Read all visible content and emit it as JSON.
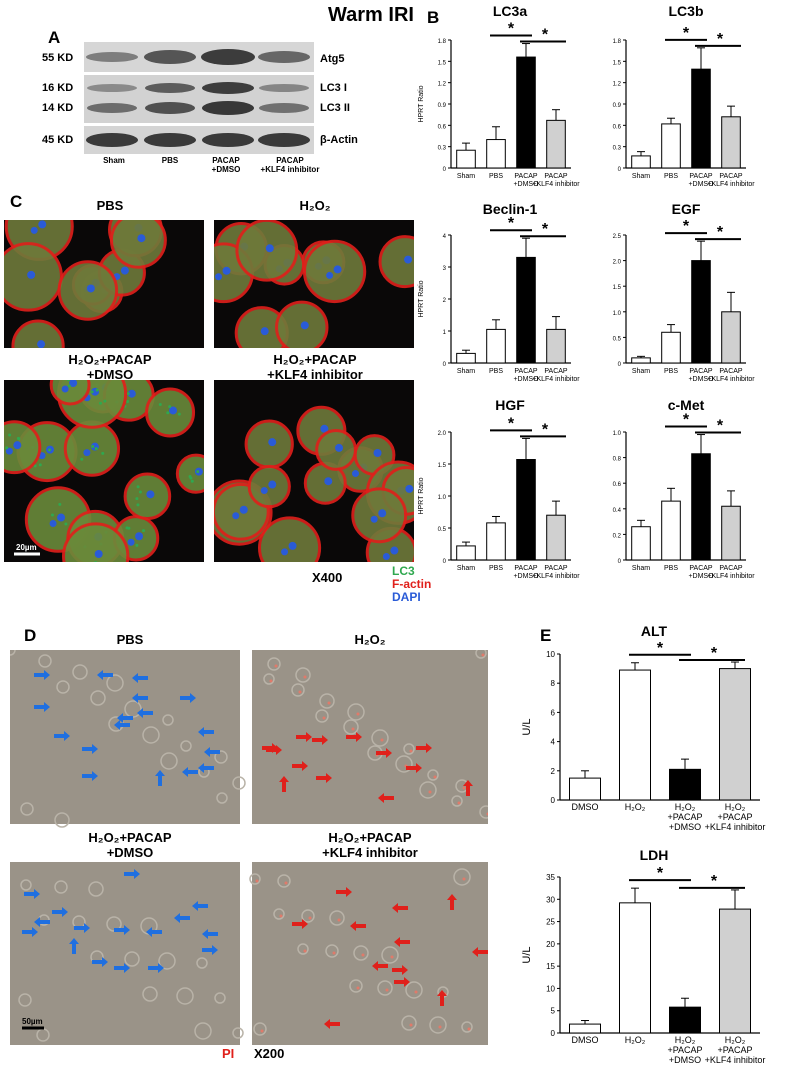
{
  "header": {
    "title": "Warm IRI"
  },
  "panel_labels": {
    "a": "A",
    "b": "B",
    "c": "C",
    "d": "D",
    "e": "E"
  },
  "blot": {
    "kd_labels": [
      "55 KD",
      "16 KD",
      "14 KD",
      "45 KD"
    ],
    "band_labels": [
      "Atg5",
      "LC3 I",
      "LC3 II",
      "β-Actin"
    ],
    "lanes": [
      "Sham",
      "PBS",
      "PACAP\n+DMSO",
      "PACAP\n+KLF4 inhibitor"
    ]
  },
  "panel_c": {
    "titles": [
      "PBS",
      "H₂O₂",
      "H₂O₂+PACAP\n+DMSO",
      "H₂O₂+PACAP\n+KLF4 inhibitor"
    ],
    "scale": "20µm",
    "magnification": "X400",
    "legend": {
      "lc3": "LC3",
      "factin": "F-actin",
      "dapi": "DAPI"
    },
    "colors": {
      "lc3": "#2fa84f",
      "factin": "#e0201b",
      "dapi": "#2a5bd7"
    }
  },
  "panel_d": {
    "titles": [
      "PBS",
      "H₂O₂",
      "H₂O₂+PACAP\n+DMSO",
      "H₂O₂+PACAP\n+KLF4 inhibitor"
    ],
    "scale": "50µm",
    "stain": "PI",
    "magnification": "X200",
    "colors": {
      "blue_arrow": "#1f6fe0",
      "red_arrow": "#e0201b"
    }
  },
  "chart_data": [
    {
      "type": "bar",
      "title": "LC3a",
      "ylabel": "HPRT Ratio",
      "categories": [
        "Sham",
        "PBS",
        "PACAP\n+DMSO",
        "PACAP\n+KLF4 inhibitor"
      ],
      "values": [
        0.25,
        0.4,
        1.56,
        0.67
      ],
      "errors": [
        0.1,
        0.18,
        0.19,
        0.15
      ],
      "ylim": [
        0,
        1.8
      ],
      "yticks": [
        "0",
        "0.3",
        "0.6",
        "0.9",
        "1.2",
        "1.5",
        "1.8"
      ],
      "fills": [
        "#ffffff",
        "#ffffff",
        "#000000",
        "#d0d0d0"
      ],
      "sig": [
        "*",
        "*"
      ]
    },
    {
      "type": "bar",
      "title": "LC3b",
      "ylabel": "",
      "categories": [
        "Sham",
        "PBS",
        "PACAP\n+DMSO",
        "PACAP\n+KLF4 inhibitor"
      ],
      "values": [
        0.17,
        0.62,
        1.39,
        0.72
      ],
      "errors": [
        0.06,
        0.08,
        0.3,
        0.15
      ],
      "ylim": [
        0,
        1.8
      ],
      "yticks": [
        "0",
        "0.3",
        "0.6",
        "0.9",
        "1.2",
        "1.5",
        "1.8"
      ],
      "fills": [
        "#ffffff",
        "#ffffff",
        "#000000",
        "#d0d0d0"
      ],
      "sig": [
        "*",
        "*"
      ]
    },
    {
      "type": "bar",
      "title": "Beclin-1",
      "ylabel": "HPRT Ratio",
      "categories": [
        "Sham",
        "PBS",
        "PACAP\n+DMSO",
        "PACAP\n+KLF4 inhibitor"
      ],
      "values": [
        0.3,
        1.05,
        3.3,
        1.05
      ],
      "errors": [
        0.1,
        0.3,
        0.6,
        0.4
      ],
      "ylim": [
        0,
        4
      ],
      "yticks": [
        "0",
        "1",
        "2",
        "3",
        "4"
      ],
      "fills": [
        "#ffffff",
        "#ffffff",
        "#000000",
        "#d0d0d0"
      ],
      "sig": [
        "*",
        "*"
      ]
    },
    {
      "type": "bar",
      "title": "EGF",
      "ylabel": "",
      "categories": [
        "Sham",
        "PBS",
        "PACAP\n+DMSO",
        "PACAP\n+KLF4 inhibitor"
      ],
      "values": [
        0.1,
        0.6,
        2.0,
        1.0
      ],
      "errors": [
        0.03,
        0.15,
        0.38,
        0.38
      ],
      "ylim": [
        0,
        2.5
      ],
      "yticks": [
        "0",
        "0.5",
        "1.0",
        "1.5",
        "2.0",
        "2.5"
      ],
      "fills": [
        "#ffffff",
        "#ffffff",
        "#000000",
        "#d0d0d0"
      ],
      "sig": [
        "*",
        "*"
      ]
    },
    {
      "type": "bar",
      "title": "HGF",
      "ylabel": "HPRT Ratio",
      "categories": [
        "Sham",
        "PBS",
        "PACAP\n+DMSO",
        "PACAP\n+KLF4 inhibitor"
      ],
      "values": [
        0.22,
        0.58,
        1.57,
        0.7
      ],
      "errors": [
        0.06,
        0.1,
        0.33,
        0.22
      ],
      "ylim": [
        0,
        2.0
      ],
      "yticks": [
        "0",
        "0.5",
        "1.0",
        "1.5",
        "2.0"
      ],
      "fills": [
        "#ffffff",
        "#ffffff",
        "#000000",
        "#d0d0d0"
      ],
      "sig": [
        "*",
        "*"
      ]
    },
    {
      "type": "bar",
      "title": "c-Met",
      "ylabel": "",
      "categories": [
        "Sham",
        "PBS",
        "PACAP\n+DMSO",
        "PACAP\n+KLF4 inhibitor"
      ],
      "values": [
        0.26,
        0.46,
        0.83,
        0.42
      ],
      "errors": [
        0.05,
        0.1,
        0.15,
        0.12
      ],
      "ylim": [
        0,
        1.0
      ],
      "yticks": [
        "0",
        "0.2",
        "0.4",
        "0.6",
        "0.8",
        "1.0"
      ],
      "fills": [
        "#ffffff",
        "#ffffff",
        "#000000",
        "#d0d0d0"
      ],
      "sig": [
        "*",
        "*"
      ]
    },
    {
      "type": "bar",
      "title": "ALT",
      "ylabel": "U/L",
      "categories": [
        "DMSO",
        "H₂O₂",
        "H₂O₂\n+PACAP\n+DMSO",
        "H₂O₂\n+PACAP\n+KLF4 inhibitor"
      ],
      "values": [
        1.5,
        8.9,
        2.1,
        9.0
      ],
      "errors": [
        0.5,
        0.5,
        0.7,
        0.45
      ],
      "ylim": [
        0,
        10
      ],
      "yticks": [
        "0",
        "2",
        "4",
        "6",
        "8",
        "10"
      ],
      "fills": [
        "#ffffff",
        "#ffffff",
        "#000000",
        "#d0d0d0"
      ],
      "sig": [
        "*",
        "*"
      ]
    },
    {
      "type": "bar",
      "title": "LDH",
      "ylabel": "U/L",
      "categories": [
        "DMSO",
        "H₂O₂",
        "H₂O₂\n+PACAP\n+DMSO",
        "H₂O₂\n+PACAP\n+KLF4 inhibitor"
      ],
      "values": [
        2.0,
        29.2,
        5.8,
        27.8
      ],
      "errors": [
        0.8,
        3.3,
        2.0,
        4.3
      ],
      "ylim": [
        0,
        35
      ],
      "yticks": [
        "0",
        "5",
        "10",
        "15",
        "20",
        "25",
        "30",
        "35"
      ],
      "fills": [
        "#ffffff",
        "#ffffff",
        "#000000",
        "#d0d0d0"
      ],
      "sig": [
        "*",
        "*"
      ]
    }
  ]
}
